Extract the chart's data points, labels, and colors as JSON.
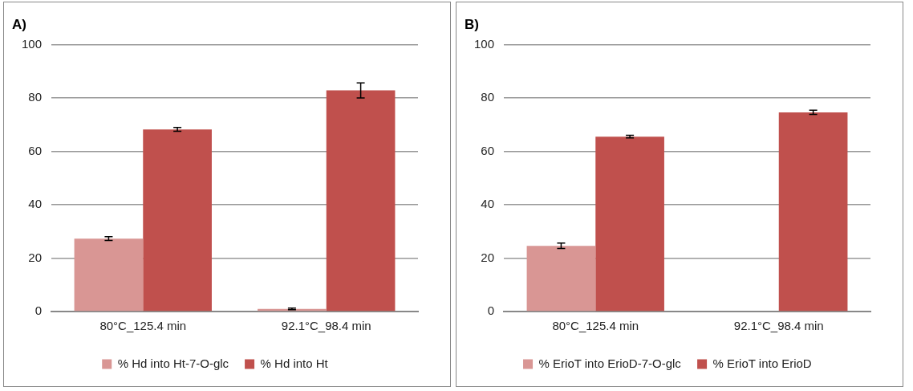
{
  "chart_data": [
    {
      "type": "bar",
      "title": "A)",
      "categories": [
        "80°C_125.4 min",
        "92.1°C_98.4 min"
      ],
      "series": [
        {
          "name": "% Hd into Ht-7-O-glc",
          "color": "#d99694",
          "values": [
            27.3,
            1
          ],
          "errors": [
            0.7,
            0.3
          ]
        },
        {
          "name": "% Hd into Ht",
          "color": "#c0504d",
          "values": [
            68.2,
            82.8
          ],
          "errors": [
            0.7,
            2.8
          ]
        }
      ],
      "ylim": [
        0,
        100
      ],
      "yticks": [
        0,
        20,
        40,
        60,
        80,
        100
      ],
      "grid": "y",
      "legend": "bottom"
    },
    {
      "type": "bar",
      "title": "B)",
      "categories": [
        "80°C_125.4 min",
        "92.1°C_98.4 min"
      ],
      "series": [
        {
          "name": "% ErioT into ErioD-7-O-glc",
          "color": "#d99694",
          "values": [
            24.6,
            0
          ],
          "errors": [
            1,
            null
          ]
        },
        {
          "name": "% ErioT into ErioD",
          "color": "#c0504d",
          "values": [
            65.5,
            74.6
          ],
          "errors": [
            0.5,
            0.8
          ]
        }
      ],
      "ylim": [
        0,
        100
      ],
      "yticks": [
        0,
        20,
        40,
        60,
        80,
        100
      ],
      "grid": "y",
      "legend": "bottom"
    }
  ]
}
